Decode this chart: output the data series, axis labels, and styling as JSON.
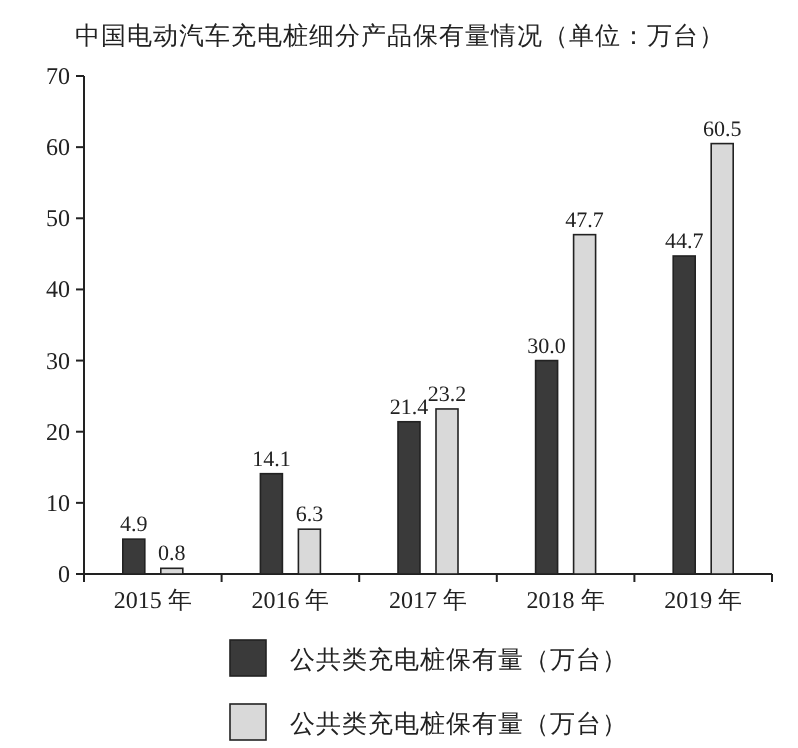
{
  "chart_data": {
    "type": "bar",
    "title": "中国电动汽车充电桩细分产品保有量情况（单位：万台）",
    "categories": [
      "2015 年",
      "2016 年",
      "2017 年",
      "2018 年",
      "2019 年"
    ],
    "series": [
      {
        "name": "公共类充电桩保有量（万台）",
        "color": "#3a3a3a",
        "values": [
          4.9,
          14.1,
          21.4,
          30.0,
          44.7
        ],
        "value_labels": [
          "4.9",
          "14.1",
          "21.4",
          "30.0",
          "44.7"
        ]
      },
      {
        "name": "公共类充电桩保有量（万台）",
        "color": "#d9d9d9",
        "values": [
          0.8,
          6.3,
          23.2,
          47.7,
          60.5
        ],
        "value_labels": [
          "0.8",
          "6.3",
          "23.2",
          "47.7",
          "60.5"
        ]
      }
    ],
    "ylim": [
      0,
      70
    ],
    "yticks": [
      0,
      10,
      20,
      30,
      40,
      50,
      60,
      70
    ],
    "legend": "bottom",
    "grid": false
  }
}
